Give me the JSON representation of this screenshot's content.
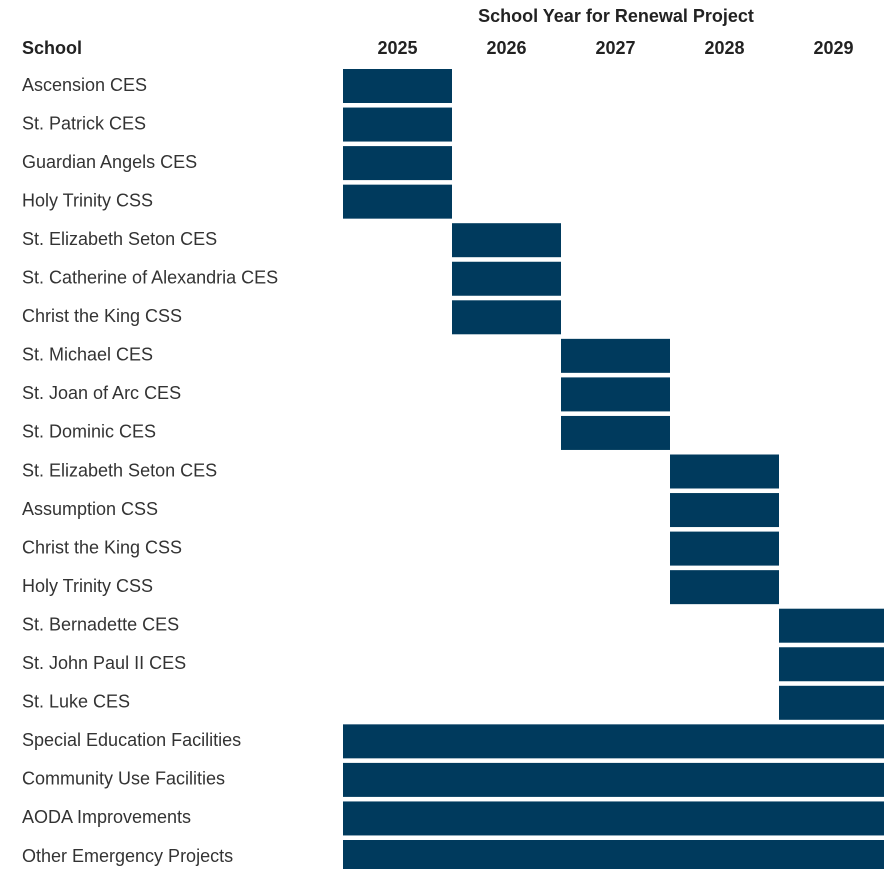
{
  "chart_data": {
    "type": "gantt",
    "title": "School Year for Renewal Project",
    "y_label": "School",
    "categories": [
      "Ascension CES",
      "St. Patrick CES",
      "Guardian Angels CES",
      "Holy Trinity CSS",
      "St. Elizabeth Seton CES",
      "St. Catherine of Alexandria CES",
      "Christ the King CSS",
      "St. Michael CES",
      "St. Joan of Arc CES",
      "St. Dominic CES",
      "St. Elizabeth Seton CES",
      "Assumption CSS",
      "Christ the King CSS",
      "Holy Trinity CSS",
      "St. Bernadette CES",
      "St. John Paul II CES",
      "St. Luke CES",
      "Special Education Facilities",
      "Community Use Facilities",
      "AODA Improvements",
      "Other Emergency Projects"
    ],
    "start": [
      2025,
      2025,
      2025,
      2025,
      2026,
      2026,
      2026,
      2027,
      2027,
      2027,
      2028,
      2028,
      2028,
      2028,
      2029,
      2029,
      2029,
      2025,
      2025,
      2025,
      2025
    ],
    "end": [
      2025,
      2025,
      2025,
      2025,
      2026,
      2026,
      2026,
      2027,
      2027,
      2027,
      2028,
      2028,
      2028,
      2028,
      2029,
      2029,
      2029,
      2029,
      2029,
      2029,
      2029
    ],
    "xlim": [
      2025,
      2029
    ],
    "xticks": [
      2025,
      2026,
      2027,
      2028,
      2029
    ],
    "color": "#003a5d"
  }
}
